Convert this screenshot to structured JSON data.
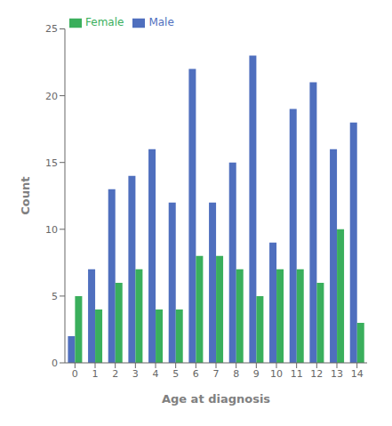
{
  "chart_data": {
    "type": "bar",
    "xlabel": "Age at diagnosis",
    "ylabel": "Count",
    "categories": [
      "0",
      "1",
      "2",
      "3",
      "4",
      "5",
      "6",
      "7",
      "8",
      "9",
      "10",
      "11",
      "12",
      "13",
      "14"
    ],
    "series": [
      {
        "name": "Male",
        "color": "#4f6fbe",
        "values": [
          2,
          7,
          13,
          14,
          16,
          12,
          22,
          12,
          15,
          23,
          9,
          19,
          21,
          16,
          18
        ]
      },
      {
        "name": "Female",
        "color": "#3aaf5c",
        "values": [
          5,
          4,
          6,
          7,
          4,
          4,
          8,
          8,
          7,
          5,
          7,
          7,
          6,
          10,
          3
        ]
      }
    ],
    "ylim": [
      0,
      25
    ],
    "yticks": [
      0,
      5,
      10,
      15,
      20,
      25
    ],
    "grid": false,
    "legend": "upper left"
  }
}
